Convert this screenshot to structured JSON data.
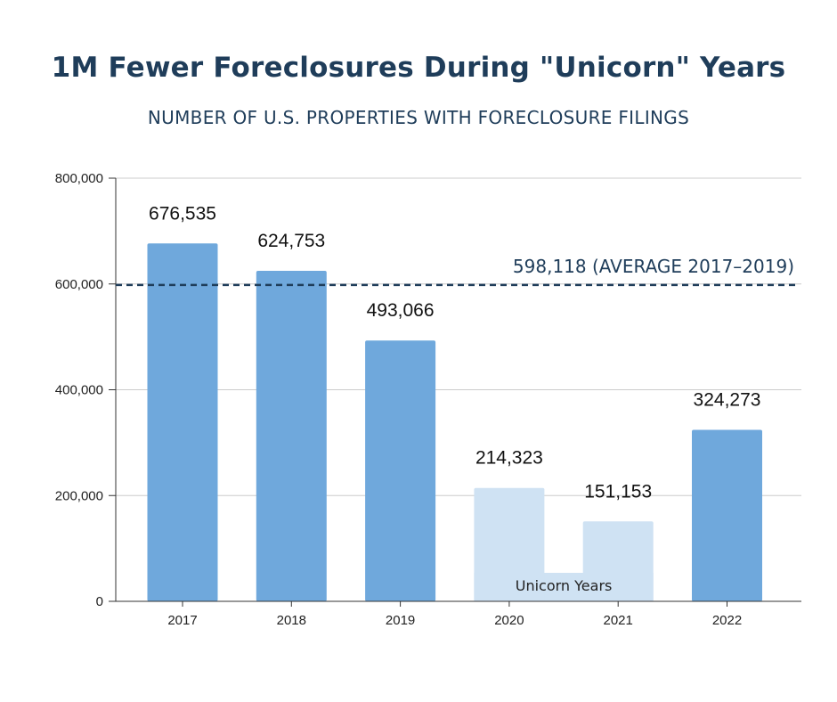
{
  "header": {
    "title": "1M Fewer Foreclosures During \"Unicorn\" Years",
    "subtitle": "NUMBER OF U.S. PROPERTIES WITH FORECLOSURE FILINGS"
  },
  "chart_data": {
    "type": "bar",
    "title": "1M Fewer Foreclosures During \"Unicorn\" Years",
    "subtitle": "NUMBER OF U.S. PROPERTIES WITH FORECLOSURE FILINGS",
    "categories": [
      "2017",
      "2018",
      "2019",
      "2020",
      "2021",
      "2022"
    ],
    "values": [
      676535,
      624753,
      493066,
      214323,
      151153,
      324273
    ],
    "data_labels": [
      "676,535",
      "624,753",
      "493,066",
      "214,323",
      "151,153",
      "324,273"
    ],
    "highlighted_categories": [
      "2020",
      "2021"
    ],
    "highlight_label": "Unicorn Years",
    "reference_line": {
      "value": 598118,
      "label": "598,118 (AVERAGE 2017–2019)",
      "style": "dashed"
    },
    "ylim": [
      0,
      800000
    ],
    "yticks": [
      0,
      200000,
      400000,
      600000,
      800000
    ],
    "ytick_labels": [
      "0",
      "200,000",
      "400,000",
      "600,000",
      "800,000"
    ],
    "xlabel": "",
    "ylabel": "",
    "grid": true,
    "colors": {
      "bar": "#6fa8dc",
      "bar_highlight": "#cfe2f3",
      "reference_line": "#1f3d5a",
      "title": "#1f3d5a",
      "grid": "#cccccc"
    }
  }
}
